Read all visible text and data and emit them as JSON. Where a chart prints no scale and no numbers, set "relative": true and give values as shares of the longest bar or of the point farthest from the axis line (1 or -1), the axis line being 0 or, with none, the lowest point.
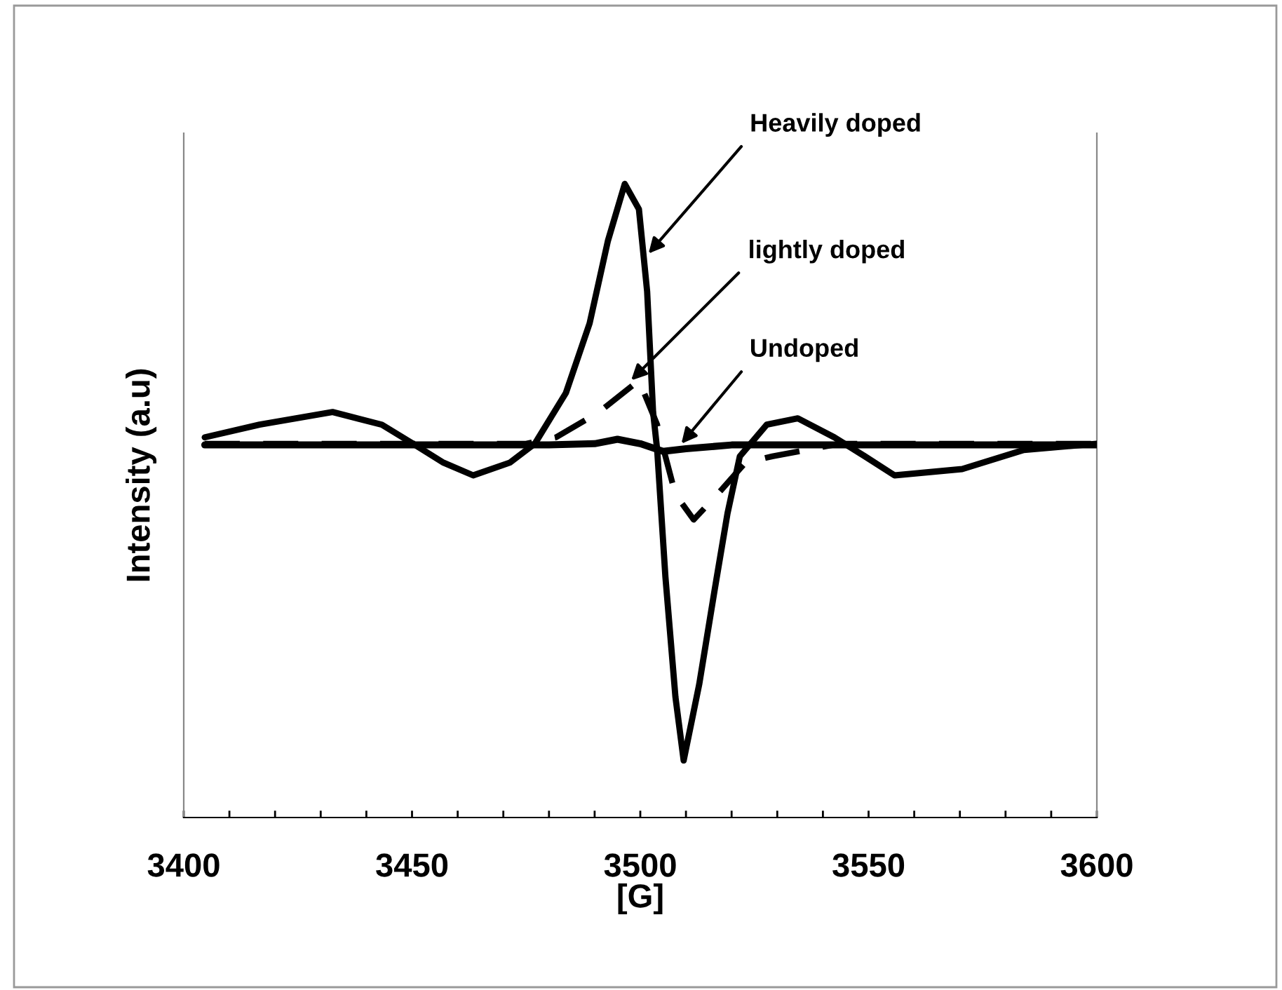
{
  "chart_data": {
    "type": "line",
    "relative": true,
    "xlabel": "[G]",
    "ylabel": "Intensity (a.u)",
    "xlim": [
      3400,
      3600
    ],
    "xticks": [
      3400,
      {
        "value": 3410,
        "label": null
      },
      {
        "value": 3420,
        "label": null
      },
      {
        "value": 3430,
        "label": null
      },
      {
        "value": 3440,
        "label": null
      },
      3450,
      {
        "value": 3460,
        "label": null
      },
      {
        "value": 3470,
        "label": null
      },
      {
        "value": 3480,
        "label": null
      },
      {
        "value": 3490,
        "label": null
      },
      3500,
      {
        "value": 3510,
        "label": null
      },
      {
        "value": 3520,
        "label": null
      },
      {
        "value": 3530,
        "label": null
      },
      {
        "value": 3540,
        "label": null
      },
      3550,
      {
        "value": 3560,
        "label": null
      },
      {
        "value": 3570,
        "label": null
      },
      {
        "value": 3580,
        "label": null
      },
      {
        "value": 3590,
        "label": null
      },
      3600
    ],
    "tick_labels": "x",
    "grid": false,
    "legend": false,
    "marker": "none",
    "series": [
      {
        "color": "#000000",
        "line_style": "solid",
        "x": [
          3404.6,
          3416.6,
          3432.6,
          3443.4,
          3450.2,
          3456.9,
          3463.4,
          3471.4,
          3476.9,
          3483.7,
          3488.9,
          3492.9,
          3496.6,
          3499.7,
          3501.5,
          3502.8,
          3503.7,
          3505.5,
          3507.7,
          3509.5,
          3512.9,
          3516.3,
          3519.1,
          3521.8,
          3527.7,
          3534.5,
          3542.5,
          3549.2,
          3555.7,
          3570.5,
          3584.0,
          3600.0
        ],
        "values": [
          0.6,
          0.62,
          0.64,
          0.62,
          0.59,
          0.56,
          0.54,
          0.56,
          0.59,
          0.67,
          0.78,
          0.91,
          1.0,
          0.96,
          0.83,
          0.64,
          0.58,
          0.38,
          0.19,
          0.09,
          0.21,
          0.36,
          0.48,
          0.57,
          0.62,
          0.63,
          0.6,
          0.57,
          0.54,
          0.55,
          0.58,
          0.59
        ]
      },
      {
        "color": "#000000",
        "line_style": "dashed",
        "x": [
          3404.6,
          3450,
          3475,
          3481.5,
          3491,
          3499.7,
          3503.7,
          3505.5,
          3507.7,
          3511.7,
          3516.9,
          3523,
          3528.9,
          3543.7,
          3600
        ],
        "values": [
          0.59,
          0.59,
          0.59,
          0.6,
          0.64,
          0.69,
          0.62,
          0.57,
          0.51,
          0.47,
          0.51,
          0.56,
          0.57,
          0.59,
          0.59
        ]
      },
      {
        "color": "#000000",
        "line_style": "solid",
        "x": [
          3404.6,
          3480,
          3490,
          3495,
          3500,
          3505,
          3510,
          3520,
          3600
        ],
        "values": [
          0.588,
          0.588,
          0.59,
          0.597,
          0.59,
          0.578,
          0.582,
          0.588,
          0.588
        ]
      }
    ],
    "annotations": [
      {
        "text": "Heavily doped",
        "x": 3501.8,
        "y": 0.89
      },
      {
        "text": "lightly doped",
        "x": 3498,
        "y": 0.69
      },
      {
        "text": "Undoped",
        "x": 3509,
        "y": 0.59
      }
    ]
  }
}
